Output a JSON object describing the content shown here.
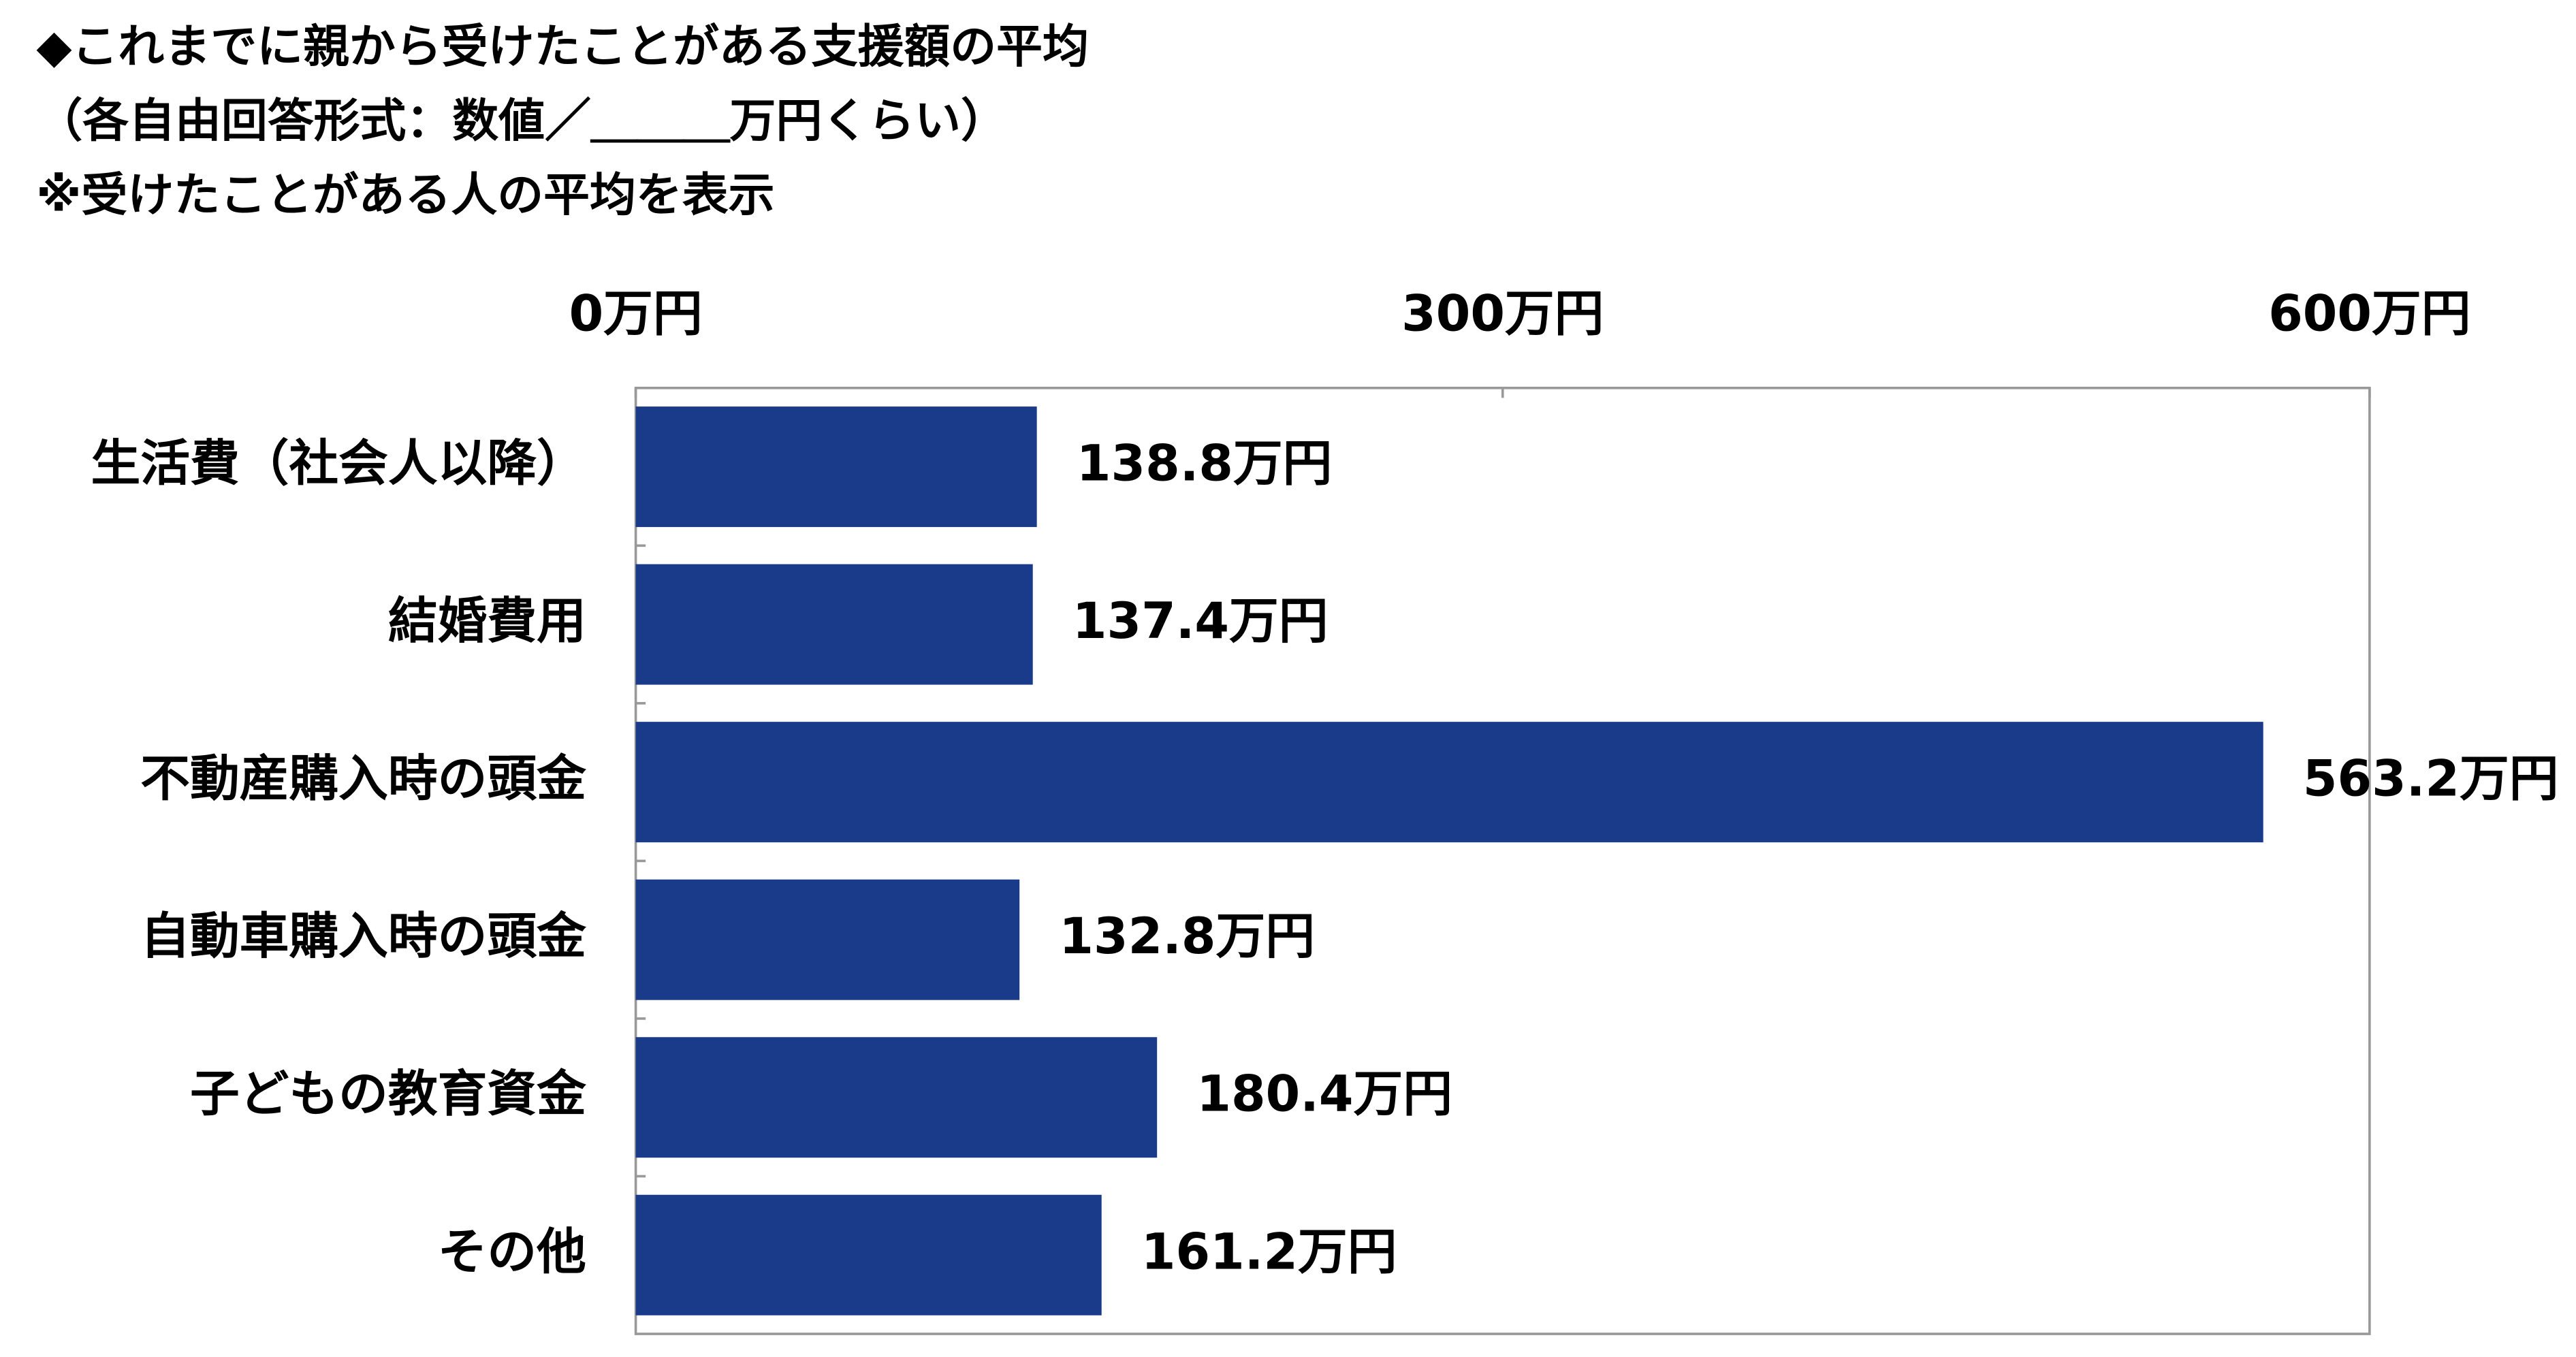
{
  "chart_data": {
    "type": "bar",
    "orientation": "horizontal",
    "title": "◆これまでに親から受けたことがある支援額の平均",
    "subtitle": "（各自由回答形式：数値／＿＿＿万円くらい）",
    "note": "※受けたことがある人の平均を表示",
    "categories": [
      "生活費（社会人以降）",
      "結婚費用",
      "不動産購入時の頭金",
      "自動車購入時の頭金",
      "子どもの教育資金",
      "その他"
    ],
    "values": [
      138.8,
      137.4,
      563.2,
      132.8,
      180.4,
      161.2
    ],
    "value_labels": [
      "138.8万円",
      "137.4万円",
      "563.2万円",
      "132.8万円",
      "180.4万円",
      "161.2万円"
    ],
    "color": "#1a3a8a",
    "xlim": [
      0,
      600
    ],
    "xticks": [
      {
        "value": 0,
        "label": "0万円"
      },
      {
        "value": 300,
        "label": "300万円"
      },
      {
        "value": 600,
        "label": "600万円"
      }
    ],
    "grid": false
  }
}
